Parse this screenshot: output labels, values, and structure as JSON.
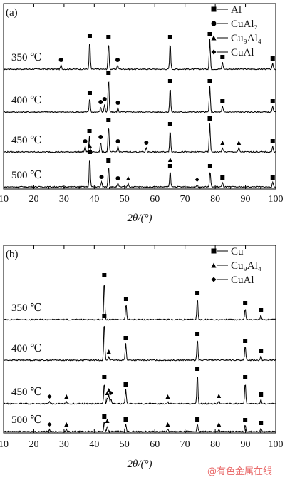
{
  "watermark": "@有色金属在线",
  "chart_data": [
    {
      "type": "line",
      "panel_label": "(a)",
      "xlabel": "2θ/(°)",
      "xlim": [
        10,
        100
      ],
      "xticks": [
        10,
        20,
        30,
        40,
        50,
        60,
        70,
        80,
        90,
        100
      ],
      "legend_position": "top-right",
      "legend": [
        {
          "symbol": "square",
          "label": "Al"
        },
        {
          "symbol": "circle",
          "label": "CuAl₂"
        },
        {
          "symbol": "triangle",
          "label": "Cu₉Al₄"
        },
        {
          "symbol": "diamond",
          "label": "CuAl"
        }
      ],
      "series": [
        {
          "name": "350 ℃",
          "peaks": [
            [
              29.0,
              6
            ],
            [
              38.5,
              40
            ],
            [
              44.7,
              38
            ],
            [
              47.7,
              6
            ],
            [
              65.1,
              38
            ],
            [
              78.2,
              42
            ],
            [
              82.4,
              10
            ],
            [
              99.0,
              8
            ]
          ],
          "markers": [
            {
              "symbol": "circle",
              "x": 29.0
            },
            {
              "symbol": "square",
              "x": 38.5
            },
            {
              "symbol": "square",
              "x": 44.7
            },
            {
              "symbol": "circle",
              "x": 47.7
            },
            {
              "symbol": "square",
              "x": 65.1
            },
            {
              "symbol": "square",
              "x": 78.2
            },
            {
              "symbol": "square",
              "x": 82.4
            },
            {
              "symbol": "square",
              "x": 99.0
            }
          ]
        },
        {
          "name": "400 ℃",
          "peaks": [
            [
              38.5,
              20
            ],
            [
              42.1,
              7
            ],
            [
              43.4,
              11
            ],
            [
              44.7,
              48
            ],
            [
              47.8,
              6
            ],
            [
              65.1,
              36
            ],
            [
              78.2,
              36
            ],
            [
              82.4,
              8
            ],
            [
              99.0,
              8
            ]
          ],
          "markers": [
            {
              "symbol": "square",
              "x": 38.5
            },
            {
              "symbol": "circle",
              "x": 42.1
            },
            {
              "symbol": "circle",
              "x": 43.4
            },
            {
              "symbol": "square",
              "x": 44.7
            },
            {
              "symbol": "circle",
              "x": 47.8
            },
            {
              "symbol": "square",
              "x": 65.1
            },
            {
              "symbol": "square",
              "x": 78.2
            },
            {
              "symbol": "square",
              "x": 82.4
            },
            {
              "symbol": "square",
              "x": 99.0
            }
          ]
        },
        {
          "name": "450 ℃",
          "peaks": [
            [
              37.0,
              8
            ],
            [
              38.4,
              22
            ],
            [
              42.1,
              14
            ],
            [
              44.7,
              38
            ],
            [
              47.8,
              8
            ],
            [
              57.2,
              6
            ],
            [
              65.1,
              32
            ],
            [
              78.2,
              40
            ],
            [
              82.4,
              6
            ],
            [
              87.8,
              6
            ],
            [
              99.0,
              8
            ]
          ],
          "markers": [
            {
              "symbol": "circle",
              "x": 37.0
            },
            {
              "symbol": "square",
              "x": 38.4
            },
            {
              "symbol": "circle",
              "x": 42.1
            },
            {
              "symbol": "square",
              "x": 44.7
            },
            {
              "symbol": "circle",
              "x": 47.8
            },
            {
              "symbol": "circle",
              "x": 57.2
            },
            {
              "symbol": "square",
              "x": 65.1
            },
            {
              "symbol": "square",
              "x": 78.2
            },
            {
              "symbol": "triangle",
              "x": 82.4
            },
            {
              "symbol": "triangle",
              "x": 87.8
            },
            {
              "symbol": "square",
              "x": 99.0
            }
          ]
        },
        {
          "name": "500 ℃",
          "peaks": [
            [
              38.5,
              42
            ],
            [
              42.4,
              7
            ],
            [
              44.7,
              30
            ],
            [
              47.8,
              5
            ],
            [
              51.2,
              5
            ],
            [
              65.1,
              22
            ],
            [
              74.0,
              3
            ],
            [
              78.3,
              22
            ],
            [
              82.4,
              6
            ],
            [
              99.0,
              6
            ]
          ],
          "markers": [
            {
              "symbol": "square",
              "x": 38.5
            },
            {
              "symbol": "triangle",
              "x": 38.5
            },
            {
              "symbol": "circle",
              "x": 42.4
            },
            {
              "symbol": "square",
              "x": 44.7
            },
            {
              "symbol": "circle",
              "x": 47.8
            },
            {
              "symbol": "triangle",
              "x": 51.2
            },
            {
              "symbol": "square",
              "x": 65.1
            },
            {
              "symbol": "triangle",
              "x": 65.1
            },
            {
              "symbol": "diamond",
              "x": 74.0
            },
            {
              "symbol": "square",
              "x": 78.3
            },
            {
              "symbol": "square",
              "x": 82.4
            },
            {
              "symbol": "square",
              "x": 99.0
            }
          ]
        }
      ]
    },
    {
      "type": "line",
      "panel_label": "(b)",
      "xlabel": "2θ/(°)",
      "xlim": [
        10,
        100
      ],
      "xticks": [
        10,
        20,
        30,
        40,
        50,
        60,
        70,
        80,
        90,
        100
      ],
      "legend_position": "top-right",
      "legend": [
        {
          "symbol": "square",
          "label": "Cu"
        },
        {
          "symbol": "triangle",
          "label": "Cu₉Al₄"
        },
        {
          "symbol": "diamond",
          "label": "CuAl"
        }
      ],
      "series": [
        {
          "name": "350 ℃",
          "peaks": [
            [
              43.3,
              55
            ],
            [
              50.5,
              22
            ],
            [
              74.1,
              30
            ],
            [
              89.9,
              16
            ],
            [
              95.1,
              6
            ]
          ],
          "markers": [
            {
              "symbol": "square",
              "x": 43.3
            },
            {
              "symbol": "square",
              "x": 50.5
            },
            {
              "symbol": "square",
              "x": 74.1
            },
            {
              "symbol": "square",
              "x": 89.9
            },
            {
              "symbol": "square",
              "x": 95.1
            }
          ]
        },
        {
          "name": "400 ℃",
          "peaks": [
            [
              43.3,
              55
            ],
            [
              44.8,
              5
            ],
            [
              50.4,
              24
            ],
            [
              74.1,
              30
            ],
            [
              89.9,
              20
            ],
            [
              95.1,
              6
            ]
          ],
          "markers": [
            {
              "symbol": "square",
              "x": 43.3
            },
            {
              "symbol": "triangle",
              "x": 44.8
            },
            {
              "symbol": "square",
              "x": 50.4
            },
            {
              "symbol": "square",
              "x": 74.1
            },
            {
              "symbol": "square",
              "x": 89.9
            },
            {
              "symbol": "square",
              "x": 95.1
            }
          ]
        },
        {
          "name": "450 ℃",
          "peaks": [
            [
              25.2,
              3
            ],
            [
              30.8,
              3
            ],
            [
              43.3,
              30
            ],
            [
              44.3,
              8
            ],
            [
              44.8,
              12
            ],
            [
              45.5,
              8
            ],
            [
              50.4,
              20
            ],
            [
              64.3,
              3
            ],
            [
              74.1,
              42
            ],
            [
              81.2,
              4
            ],
            [
              89.9,
              30
            ],
            [
              95.1,
              6
            ]
          ],
          "markers": [
            {
              "symbol": "diamond",
              "x": 25.2
            },
            {
              "symbol": "triangle",
              "x": 30.8
            },
            {
              "symbol": "square",
              "x": 43.3
            },
            {
              "symbol": "triangle",
              "x": 44.3
            },
            {
              "symbol": "triangle",
              "x": 44.8
            },
            {
              "symbol": "diamond",
              "x": 45.5
            },
            {
              "symbol": "square",
              "x": 50.4
            },
            {
              "symbol": "triangle",
              "x": 64.3
            },
            {
              "symbol": "square",
              "x": 74.1
            },
            {
              "symbol": "triangle",
              "x": 81.2
            },
            {
              "symbol": "square",
              "x": 89.9
            },
            {
              "symbol": "square",
              "x": 95.1
            }
          ]
        },
        {
          "name": "500 ℃",
          "peaks": [
            [
              25.2,
              3
            ],
            [
              30.8,
              3
            ],
            [
              43.3,
              14
            ],
            [
              44.3,
              8
            ],
            [
              50.4,
              10
            ],
            [
              64.3,
              3
            ],
            [
              74.1,
              10
            ],
            [
              81.2,
              3
            ],
            [
              89.9,
              9
            ],
            [
              95.1,
              5
            ]
          ],
          "markers": [
            {
              "symbol": "diamond",
              "x": 25.2
            },
            {
              "symbol": "triangle",
              "x": 30.8
            },
            {
              "symbol": "square",
              "x": 43.3
            },
            {
              "symbol": "triangle",
              "x": 44.3
            },
            {
              "symbol": "square",
              "x": 50.4
            },
            {
              "symbol": "triangle",
              "x": 64.3
            },
            {
              "symbol": "square",
              "x": 74.1
            },
            {
              "symbol": "triangle",
              "x": 81.2
            },
            {
              "symbol": "square",
              "x": 89.9
            },
            {
              "symbol": "square",
              "x": 95.1
            }
          ]
        }
      ]
    }
  ]
}
